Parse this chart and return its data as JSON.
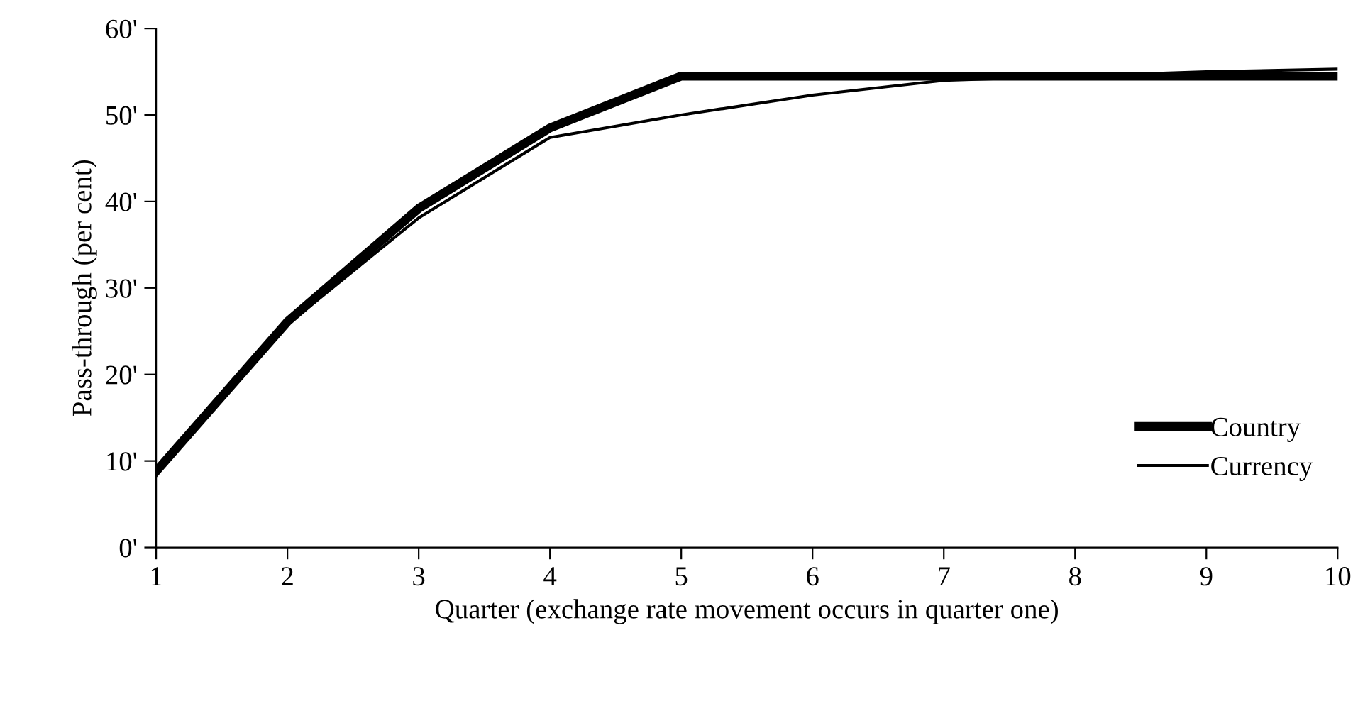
{
  "chart_data": {
    "type": "line",
    "xlabel": "Quarter (exchange rate movement occurs in quarter one)",
    "ylabel": "Pass-through (per cent)",
    "x": [
      1,
      2,
      3,
      4,
      5,
      6,
      7,
      8,
      9,
      10
    ],
    "series": [
      {
        "name": "Country",
        "color": "#000000",
        "values": [
          8.8,
          26.1,
          39.2,
          48.5,
          54.5,
          54.5,
          54.5,
          54.5,
          54.5,
          54.5
        ]
      },
      {
        "name": "Currency",
        "color": "#000000",
        "values": [
          8.5,
          25.8,
          38.1,
          47.4,
          50.0,
          52.3,
          54.0,
          54.5,
          55.0,
          55.3
        ]
      }
    ],
    "xlim": [
      1,
      10
    ],
    "xticks": [
      1,
      2,
      3,
      4,
      5,
      6,
      7,
      8,
      9,
      10
    ],
    "ylim": [
      0,
      60
    ],
    "yticks": [
      {
        "value": 0,
        "label": "0'"
      },
      {
        "value": 10,
        "label": "10'"
      },
      {
        "value": 20,
        "label": "20'"
      },
      {
        "value": 30,
        "label": "30'"
      },
      {
        "value": 40,
        "label": "40'"
      },
      {
        "value": 50,
        "label": "50'"
      },
      {
        "value": 60,
        "label": "60'"
      }
    ],
    "grid": false,
    "legend": "bottom right",
    "marker": "none",
    "line_style": "solid"
  }
}
